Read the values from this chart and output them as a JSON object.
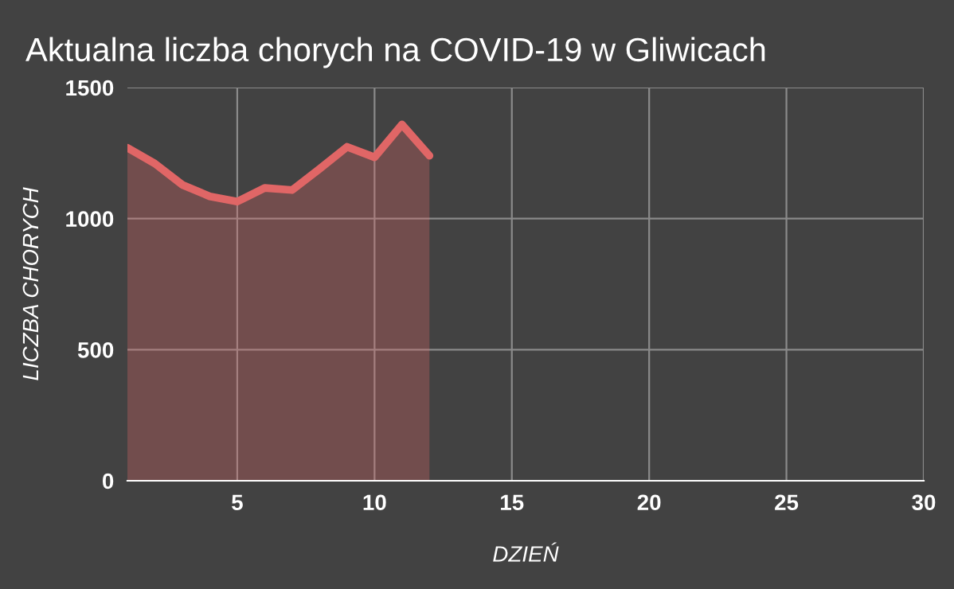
{
  "chart_data": {
    "type": "area",
    "title": "Aktualna liczba chorych na COVID-19 w Gliwicach",
    "xlabel": "DZIEŃ",
    "ylabel": "LICZBA CHORYCH",
    "x": [
      1,
      2,
      3,
      4,
      5,
      6,
      7,
      8,
      9,
      10,
      11,
      12
    ],
    "series": [
      {
        "color": "#e06666",
        "values": [
          1270,
          1210,
          1129,
          1085,
          1065,
          1117,
          1109,
          1190,
          1274,
          1234,
          1359,
          1240
        ]
      }
    ],
    "xlim": [
      1,
      30
    ],
    "xticks": [
      5,
      10,
      15,
      20,
      25,
      30
    ],
    "ylim": [
      0,
      1500
    ],
    "yticks": [
      0,
      500,
      1000,
      1500
    ],
    "grid": true
  }
}
